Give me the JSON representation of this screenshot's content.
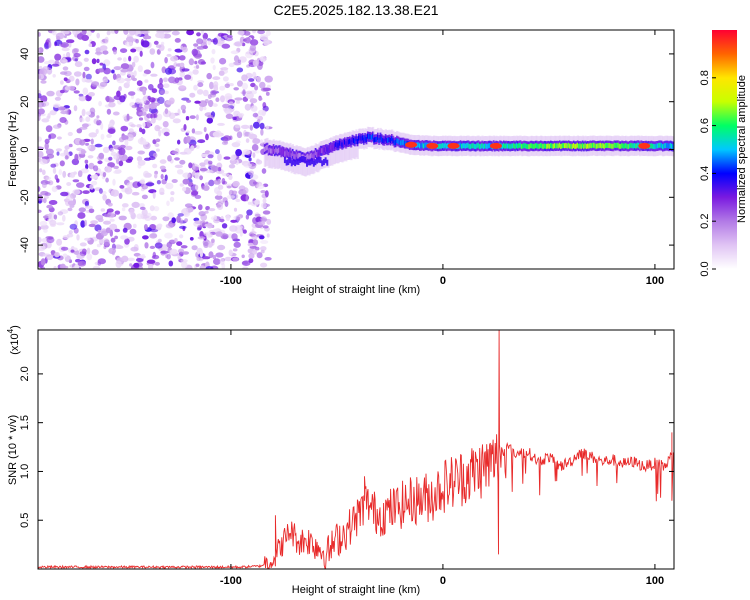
{
  "title": "C2E5.2025.182.13.38.E21",
  "chart_data": [
    {
      "type": "heatmap",
      "xlabel": "Height of straight line (km)",
      "ylabel": "Frequency (Hz)",
      "xlim": [
        -191,
        109
      ],
      "ylim": [
        -50,
        50
      ],
      "xticks": [
        -100,
        0,
        100
      ],
      "yticks": [
        -40,
        -20,
        0,
        20,
        40
      ],
      "colorbar": {
        "label": "Normalized spectral amplitude",
        "range": [
          0,
          1
        ],
        "ticks": [
          "0.0",
          "0.2",
          "0.4",
          "0.6",
          "0.8"
        ],
        "tick_values": [
          0.0,
          0.2,
          0.4,
          0.6,
          0.8
        ],
        "colors": [
          "#ffffff",
          "#e0c4f4",
          "#b27ae6",
          "#7a1ae0",
          "#0000ff",
          "#00c8ff",
          "#00ff64",
          "#c8ff00",
          "#ffe600",
          "#ff6400",
          "#ff0032"
        ]
      },
      "noise_region": {
        "x": [
          -191,
          -84
        ],
        "y": [
          -50,
          50
        ]
      },
      "signal_trace": [
        {
          "x": -84,
          "freq": 0.5,
          "amp": 0.2
        },
        {
          "x": -75,
          "freq": -1,
          "amp": 0.25
        },
        {
          "x": -65,
          "freq": -4,
          "amp": 0.2
        },
        {
          "x": -55,
          "freq": 0,
          "amp": 0.3
        },
        {
          "x": -45,
          "freq": 3,
          "amp": 0.38
        },
        {
          "x": -35,
          "freq": 5,
          "amp": 0.42
        },
        {
          "x": -25,
          "freq": 4,
          "amp": 0.4
        },
        {
          "x": -15,
          "freq": 2,
          "amp": 0.45
        },
        {
          "x": -5,
          "freq": 1.5,
          "amp": 0.55
        },
        {
          "x": 5,
          "freq": 1.5,
          "amp": 0.5
        },
        {
          "x": 15,
          "freq": 1.5,
          "amp": 0.55
        },
        {
          "x": 25,
          "freq": 1.5,
          "amp": 0.5
        },
        {
          "x": 40,
          "freq": 1.5,
          "amp": 0.62
        },
        {
          "x": 60,
          "freq": 1.5,
          "amp": 0.66
        },
        {
          "x": 80,
          "freq": 1.5,
          "amp": 0.65
        },
        {
          "x": 95,
          "freq": 1.5,
          "amp": 0.55
        },
        {
          "x": 109,
          "freq": 1.5,
          "amp": 0.5
        }
      ],
      "hot_spots": [
        -15,
        -5,
        5,
        25,
        95
      ]
    },
    {
      "type": "line",
      "xlabel": "Height of straight line (km)",
      "ylabel": "SNR (10 * v/v)",
      "scale_note": "(x10",
      "scale_exp": "4",
      "xlim": [
        -191,
        109
      ],
      "ylim": [
        0,
        2.45
      ],
      "xticks": [
        -100,
        0,
        100
      ],
      "yticks": [
        0.5,
        1.0,
        1.5,
        2.0
      ],
      "color": "#e82a2a",
      "series": [
        {
          "x": [
            -191,
            -170,
            -150,
            -130,
            -110,
            -95,
            -86,
            -80,
            -76,
            -72,
            -68,
            -64,
            -60,
            -55,
            -50,
            -45,
            -40,
            -36,
            -33,
            -30,
            -25,
            -20,
            -15,
            -10,
            -5,
            0,
            5,
            10,
            15,
            20,
            24,
            26,
            27,
            28,
            30,
            35,
            40,
            45,
            50,
            55,
            60,
            65,
            70,
            75,
            80,
            85,
            90,
            95,
            100,
            105,
            107,
            109
          ],
          "y": [
            0.02,
            0.02,
            0.02,
            0.02,
            0.02,
            0.02,
            0.03,
            0.1,
            0.25,
            0.4,
            0.28,
            0.3,
            0.25,
            0.15,
            0.3,
            0.4,
            0.55,
            0.7,
            0.6,
            0.55,
            0.6,
            0.65,
            0.7,
            0.72,
            0.75,
            0.85,
            0.9,
            0.95,
            1.0,
            1.05,
            1.1,
            1.15,
            1.2,
            1.2,
            1.25,
            1.18,
            1.2,
            1.1,
            1.15,
            1.05,
            1.1,
            1.2,
            1.15,
            1.1,
            1.12,
            1.08,
            1.1,
            1.05,
            1.08,
            1.05,
            1.15,
            1.15
          ]
        }
      ],
      "spikes": [
        {
          "x": 26.5,
          "y": 2.45
        },
        {
          "x": 26.2,
          "y": 0.15
        },
        {
          "x": -37,
          "y": 0.95
        },
        {
          "x": -79,
          "y": 0.55
        },
        {
          "x": 108,
          "y": 1.4
        },
        {
          "x": 108,
          "y": 0.7
        }
      ]
    }
  ]
}
